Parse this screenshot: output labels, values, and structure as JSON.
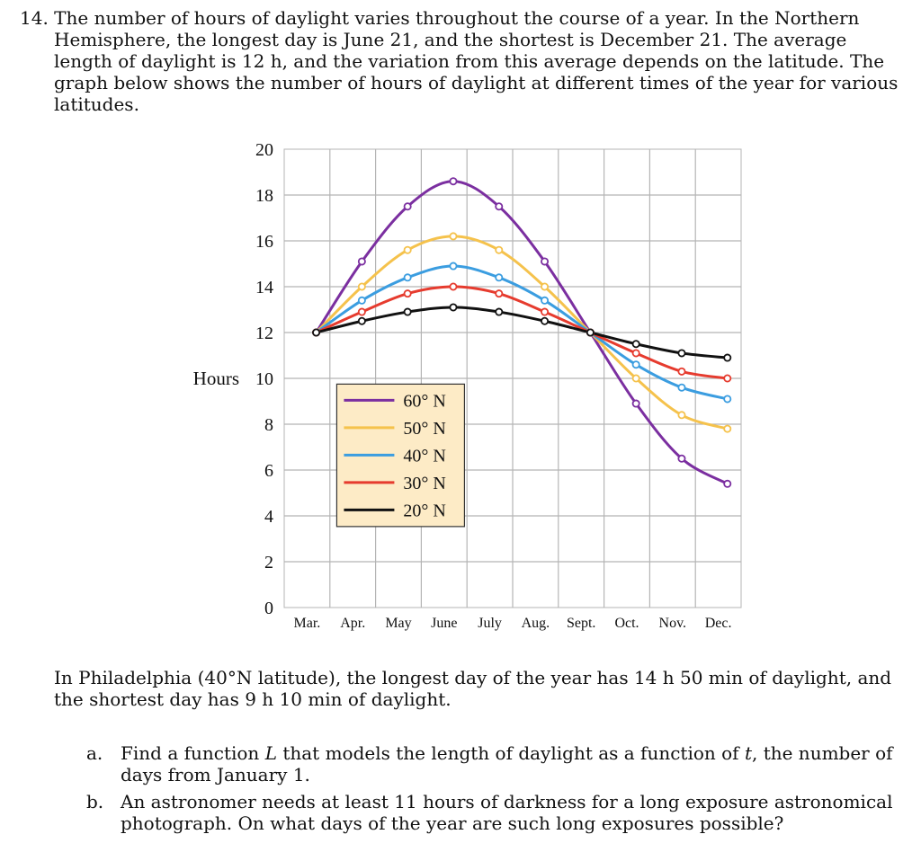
{
  "question": {
    "number": "14.",
    "intro": "The number of hours of daylight varies throughout the course of a year. In the Northern Hemisphere, the longest day is June 21, and the shortest is December 21. The average length of daylight is 12 h, and the variation from this average depends on the latitude. The graph below shows the number of hours of daylight at different times of the year for various latitudes.",
    "philadelphia": "In Philadelphia (40°N latitude), the longest day of the year has 14 h 50 min of daylight, and the shortest day has 9 h 10 min of daylight.",
    "parts": [
      {
        "letter": "a.",
        "pre": "Find a function ",
        "var1": "L",
        "mid": " that models the length of daylight as a function of ",
        "var2": "t",
        "post": ", the number of days from January 1."
      },
      {
        "letter": "b.",
        "pre": "An astronomer needs at least 11 hours of darkness for a long exposure astronomical photograph. On what days of the year are such long exposures possible?",
        "var1": "",
        "mid": "",
        "var2": "",
        "post": ""
      }
    ]
  },
  "chart_data": {
    "type": "line",
    "ylabel": "Hours",
    "xlabel": "",
    "ylim": [
      0,
      20
    ],
    "yticks": [
      0,
      2,
      4,
      6,
      8,
      10,
      12,
      14,
      16,
      18,
      20
    ],
    "categories": [
      "Mar.",
      "Apr.",
      "May",
      "June",
      "July",
      "Aug.",
      "Sept.",
      "Oct.",
      "Nov.",
      "Dec."
    ],
    "grid": true,
    "legend_placement": "center-left",
    "series": [
      {
        "name": "60° N",
        "color": "#7b2fa0",
        "points": [
          [
            0.7,
            12.0
          ],
          [
            1.7,
            15.1
          ],
          [
            2.7,
            17.5
          ],
          [
            3.7,
            18.6
          ],
          [
            4.7,
            17.5
          ],
          [
            5.7,
            15.1
          ],
          [
            6.7,
            12.0
          ],
          [
            7.7,
            8.9
          ],
          [
            8.7,
            6.5
          ],
          [
            9.7,
            5.4
          ]
        ]
      },
      {
        "name": "50° N",
        "color": "#f5c24c",
        "points": [
          [
            0.7,
            12.0
          ],
          [
            1.7,
            14.0
          ],
          [
            2.7,
            15.6
          ],
          [
            3.7,
            16.2
          ],
          [
            4.7,
            15.6
          ],
          [
            5.7,
            14.0
          ],
          [
            6.7,
            12.0
          ],
          [
            7.7,
            10.0
          ],
          [
            8.7,
            8.4
          ],
          [
            9.7,
            7.8
          ]
        ]
      },
      {
        "name": "40° N",
        "color": "#3b9de0",
        "points": [
          [
            0.7,
            12.0
          ],
          [
            1.7,
            13.4
          ],
          [
            2.7,
            14.4
          ],
          [
            3.7,
            14.9
          ],
          [
            4.7,
            14.4
          ],
          [
            5.7,
            13.4
          ],
          [
            6.7,
            12.0
          ],
          [
            7.7,
            10.6
          ],
          [
            8.7,
            9.6
          ],
          [
            9.7,
            9.1
          ]
        ]
      },
      {
        "name": "30° N",
        "color": "#e63b2e",
        "points": [
          [
            0.7,
            12.0
          ],
          [
            1.7,
            12.9
          ],
          [
            2.7,
            13.7
          ],
          [
            3.7,
            14.0
          ],
          [
            4.7,
            13.7
          ],
          [
            5.7,
            12.9
          ],
          [
            6.7,
            12.0
          ],
          [
            7.7,
            11.1
          ],
          [
            8.7,
            10.3
          ],
          [
            9.7,
            10.0
          ]
        ]
      },
      {
        "name": "20° N",
        "color": "#111111",
        "points": [
          [
            0.7,
            12.0
          ],
          [
            1.7,
            12.5
          ],
          [
            2.7,
            12.9
          ],
          [
            3.7,
            13.1
          ],
          [
            4.7,
            12.9
          ],
          [
            5.7,
            12.5
          ],
          [
            6.7,
            12.0
          ],
          [
            7.7,
            11.5
          ],
          [
            8.7,
            11.1
          ],
          [
            9.7,
            10.9
          ]
        ]
      }
    ]
  }
}
